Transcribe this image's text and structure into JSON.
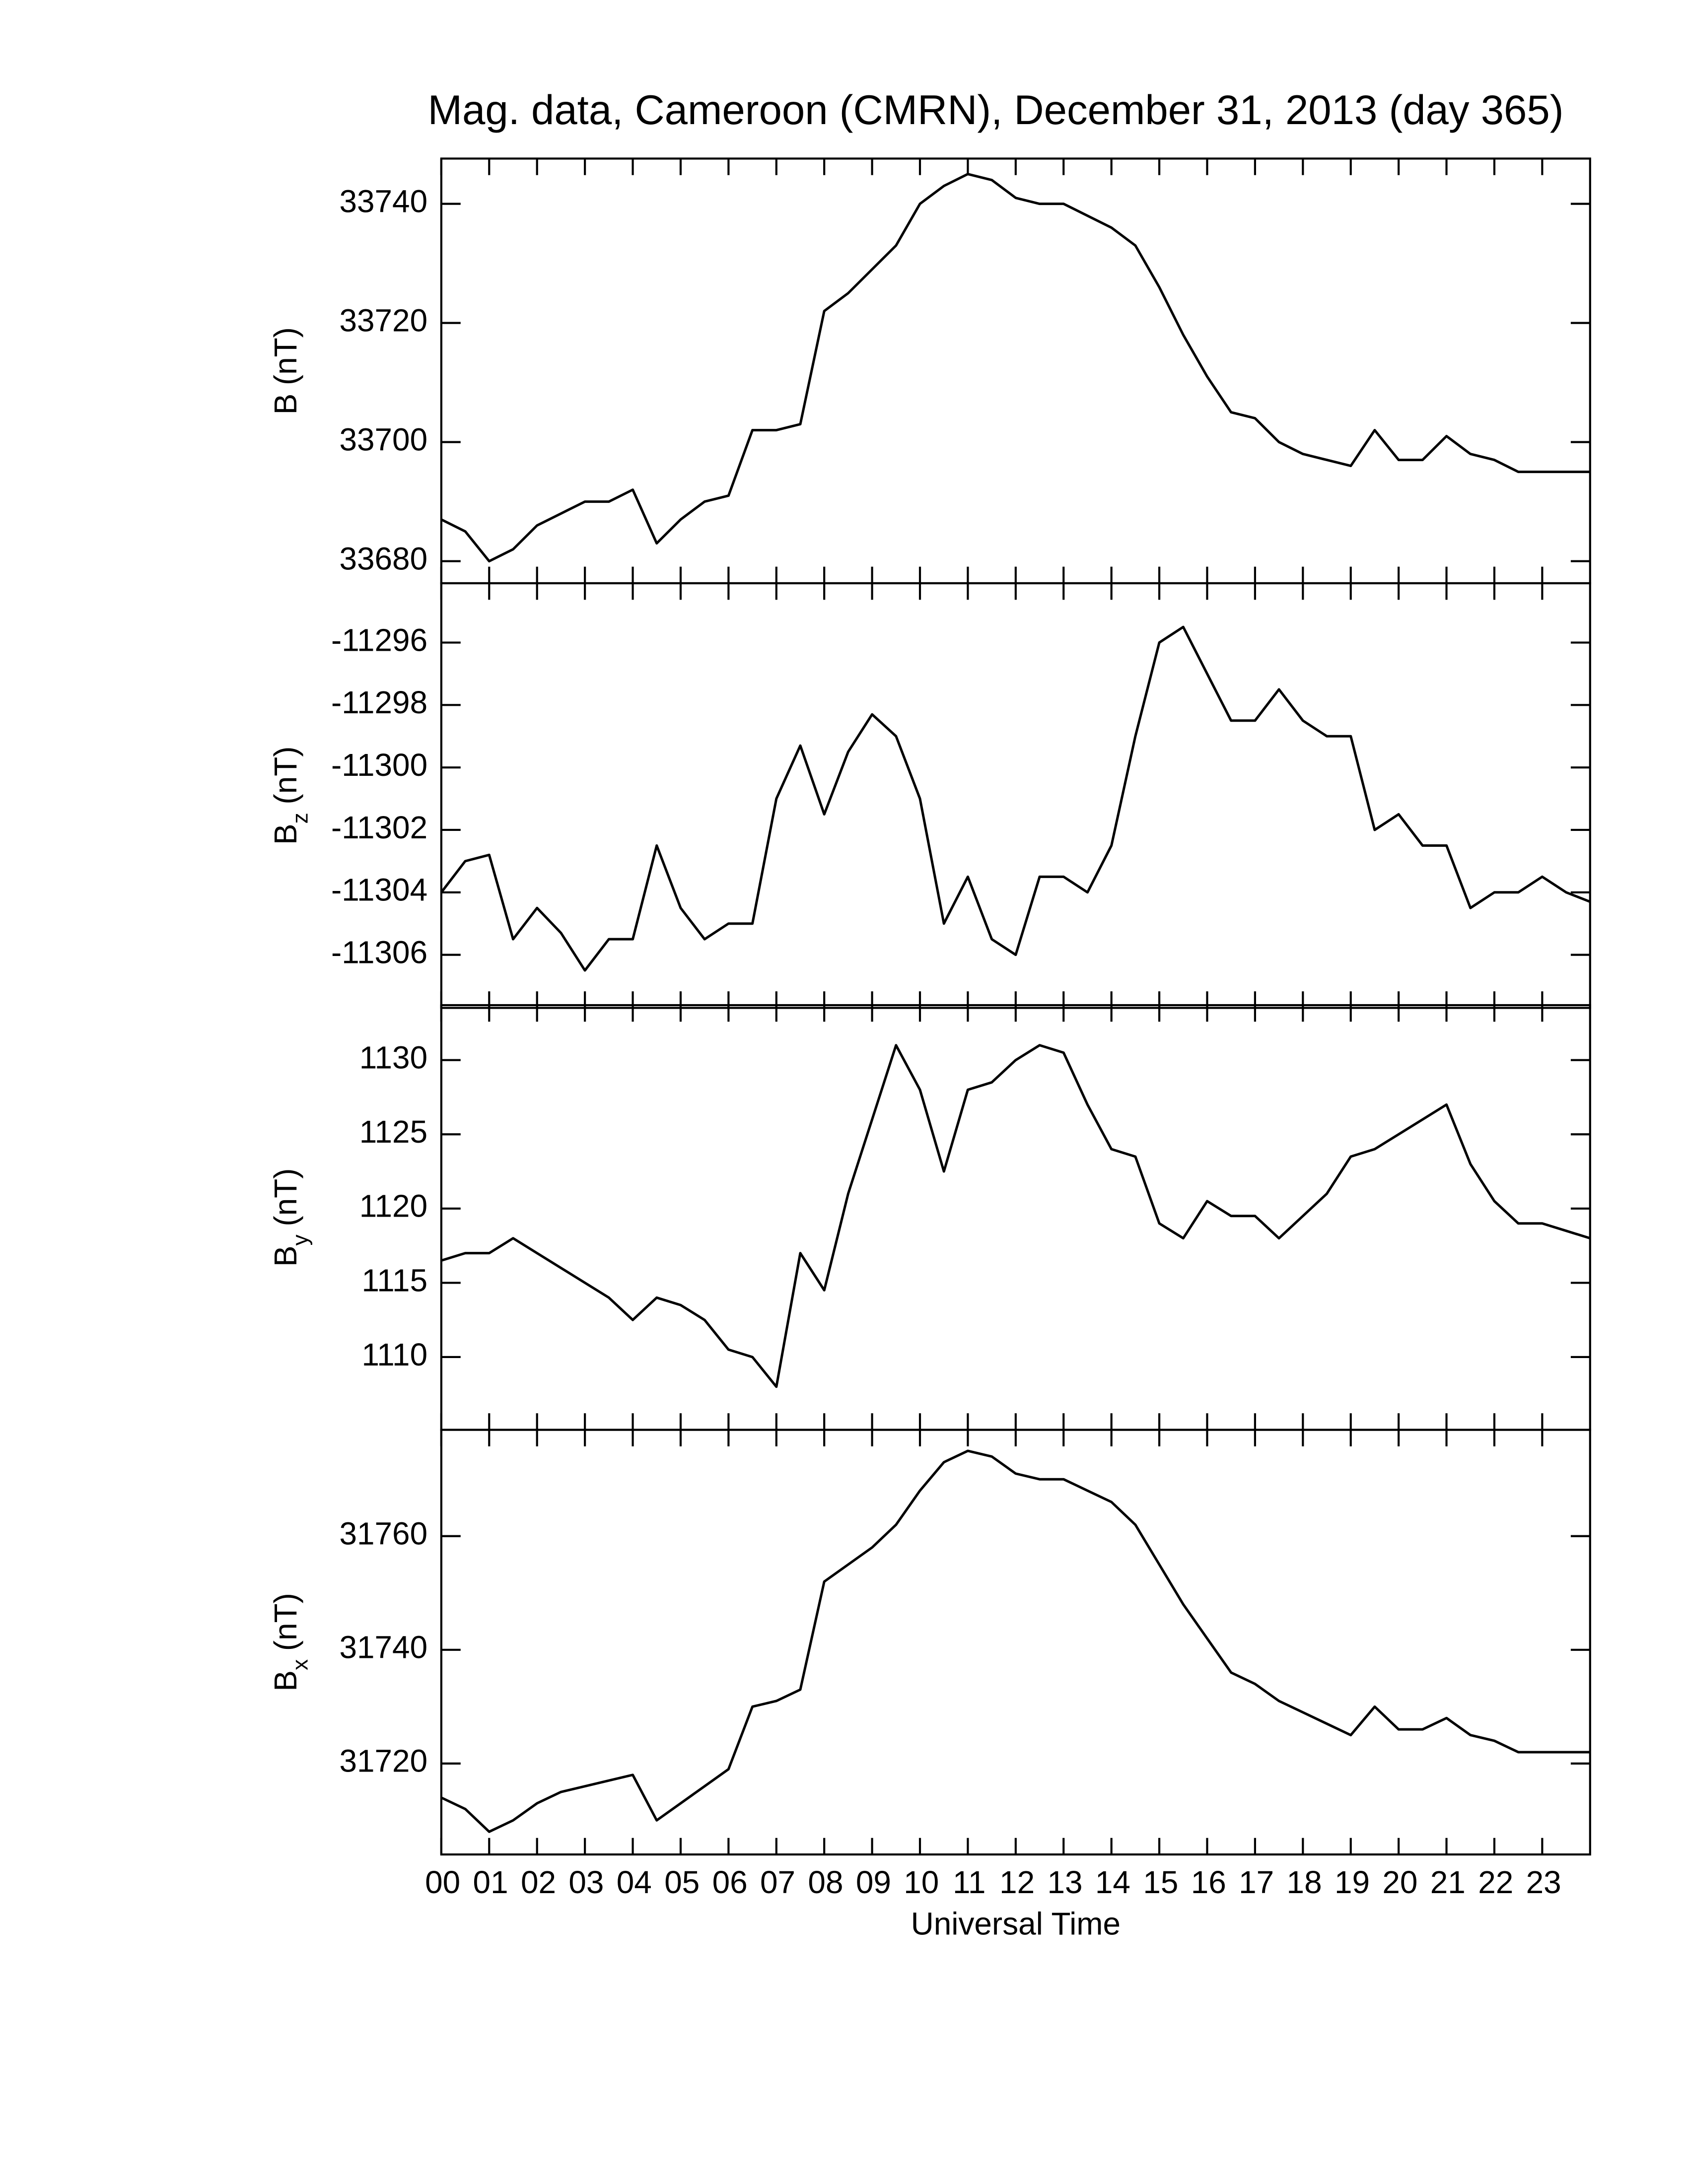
{
  "chart_data": [
    {
      "type": "line",
      "title": "Mag. data, Cameroon (CMRN), December 31, 2013 (day 365)",
      "ylabel": {
        "base": "B",
        "unit": "(nT)"
      },
      "color": "#000000",
      "x": [
        0,
        0.5,
        1,
        1.5,
        2,
        2.5,
        3,
        3.5,
        4,
        4.5,
        5,
        5.5,
        6,
        6.5,
        7,
        7.5,
        8,
        8.5,
        9,
        9.5,
        10,
        10.5,
        11,
        11.5,
        12,
        12.5,
        13,
        13.5,
        14,
        14.5,
        15,
        15.5,
        16,
        16.5,
        17,
        17.5,
        18,
        18.5,
        19,
        19.5,
        20,
        20.5,
        21,
        21.5,
        22,
        22.5,
        23,
        23.5,
        24
      ],
      "values": [
        33687,
        33685,
        33680,
        33682,
        33686,
        33688,
        33690,
        33690,
        33692,
        33683,
        33687,
        33690,
        33691,
        33702,
        33702,
        33703,
        33722,
        33725,
        33729,
        33733,
        33740,
        33743,
        33745,
        33744,
        33741,
        33740,
        33740,
        33738,
        33736,
        33733,
        33726,
        33718,
        33711,
        33705,
        33704,
        33700,
        33698,
        33697,
        33696,
        33702,
        33697,
        33697,
        33701,
        33698,
        33697,
        33695,
        33695,
        33695,
        33695
      ],
      "xlim": [
        0,
        24
      ],
      "ylim": [
        33676.3,
        33747.6
      ],
      "yticks": [
        33680,
        33700,
        33720,
        33740
      ]
    },
    {
      "type": "line",
      "ylabel": {
        "base": "B",
        "sub": "z",
        "unit": "(nT)"
      },
      "color": "#000000",
      "x": [
        0,
        0.5,
        1,
        1.5,
        2,
        2.5,
        3,
        3.5,
        4,
        4.5,
        5,
        5.5,
        6,
        6.5,
        7,
        7.5,
        8,
        8.5,
        9,
        9.5,
        10,
        10.5,
        11,
        11.5,
        12,
        12.5,
        13,
        13.5,
        14,
        14.5,
        15,
        15.5,
        16,
        16.5,
        17,
        17.5,
        18,
        18.5,
        19,
        19.5,
        20,
        20.5,
        21,
        21.5,
        22,
        22.5,
        23,
        23.5,
        24
      ],
      "values": [
        -11304,
        -11303,
        -11302.8,
        -11305.5,
        -11304.5,
        -11305.3,
        -11306.5,
        -11305.5,
        -11305.5,
        -11302.5,
        -11304.5,
        -11305.5,
        -11305,
        -11305,
        -11301,
        -11299.3,
        -11301.5,
        -11299.5,
        -11298.3,
        -11299,
        -11301,
        -11305,
        -11303.5,
        -11305.5,
        -11306,
        -11303.5,
        -11303.5,
        -11304,
        -11302.5,
        -11299,
        -11296,
        -11295.5,
        -11297,
        -11298.5,
        -11298.5,
        -11297.5,
        -11298.5,
        -11299,
        -11299,
        -11302,
        -11301.5,
        -11302.5,
        -11302.5,
        -11304.5,
        -11304,
        -11304,
        -11303.5,
        -11304,
        -11304.3
      ],
      "xlim": [
        0,
        24
      ],
      "ylim": [
        -11307.7,
        -11294.1
      ],
      "yticks": [
        -11306,
        -11304,
        -11302,
        -11300,
        -11298,
        -11296
      ]
    },
    {
      "type": "line",
      "ylabel": {
        "base": "B",
        "sub": "y",
        "unit": "(nT)"
      },
      "color": "#000000",
      "x": [
        0,
        0.5,
        1,
        1.5,
        2,
        2.5,
        3,
        3.5,
        4,
        4.5,
        5,
        5.5,
        6,
        6.5,
        7,
        7.5,
        8,
        8.5,
        9,
        9.5,
        10,
        10.5,
        11,
        11.5,
        12,
        12.5,
        13,
        13.5,
        14,
        14.5,
        15,
        15.5,
        16,
        16.5,
        17,
        17.5,
        18,
        18.5,
        19,
        19.5,
        20,
        20.5,
        21,
        21.5,
        22,
        22.5,
        23,
        23.5,
        24
      ],
      "values": [
        1116.5,
        1117,
        1117,
        1118,
        1117,
        1116,
        1115,
        1114,
        1112.5,
        1114,
        1113.5,
        1112.5,
        1110.5,
        1110,
        1108,
        1117,
        1114.5,
        1121,
        1126,
        1131,
        1128,
        1122.5,
        1128,
        1128.5,
        1130,
        1131,
        1130.5,
        1127,
        1124,
        1123.5,
        1119,
        1118,
        1120.5,
        1119.5,
        1119.5,
        1118,
        1119.5,
        1121,
        1123.5,
        1124,
        1125,
        1126,
        1127,
        1123,
        1120.5,
        1119,
        1119,
        1118.5,
        1118
      ],
      "xlim": [
        0,
        24
      ],
      "ylim": [
        1105.1,
        1133.7
      ],
      "yticks": [
        1110,
        1115,
        1120,
        1125,
        1130
      ]
    },
    {
      "type": "line",
      "ylabel": {
        "base": "B",
        "sub": "x",
        "unit": "(nT)"
      },
      "xlabel": "Universal Time",
      "color": "#000000",
      "x": [
        0,
        0.5,
        1,
        1.5,
        2,
        2.5,
        3,
        3.5,
        4,
        4.5,
        5,
        5.5,
        6,
        6.5,
        7,
        7.5,
        8,
        8.5,
        9,
        9.5,
        10,
        10.5,
        11,
        11.5,
        12,
        12.5,
        13,
        13.5,
        14,
        14.5,
        15,
        15.5,
        16,
        16.5,
        17,
        17.5,
        18,
        18.5,
        19,
        19.5,
        20,
        20.5,
        21,
        21.5,
        22,
        22.5,
        23,
        23.5,
        24
      ],
      "values": [
        31714,
        31712,
        31708,
        31710,
        31713,
        31715,
        31716,
        31717,
        31718,
        31710,
        31713,
        31716,
        31719,
        31730,
        31731,
        31733,
        31752,
        31755,
        31758,
        31762,
        31768,
        31773,
        31775,
        31774,
        31771,
        31770,
        31770,
        31768,
        31766,
        31762,
        31755,
        31748,
        31742,
        31736,
        31734,
        31731,
        31729,
        31727,
        31725,
        31730,
        31726,
        31726,
        31728,
        31725,
        31724,
        31722,
        31722,
        31722,
        31722
      ],
      "xlim": [
        0,
        24
      ],
      "ylim": [
        31704,
        31778.7
      ],
      "yticks": [
        31720,
        31740,
        31760
      ],
      "xticks": [
        {
          "value": 0,
          "label": "00"
        },
        {
          "value": 1,
          "label": "01"
        },
        {
          "value": 2,
          "label": "02"
        },
        {
          "value": 3,
          "label": "03"
        },
        {
          "value": 4,
          "label": "04"
        },
        {
          "value": 5,
          "label": "05"
        },
        {
          "value": 6,
          "label": "06"
        },
        {
          "value": 7,
          "label": "07"
        },
        {
          "value": 8,
          "label": "08"
        },
        {
          "value": 9,
          "label": "09"
        },
        {
          "value": 10,
          "label": "10"
        },
        {
          "value": 11,
          "label": "11"
        },
        {
          "value": 12,
          "label": "12"
        },
        {
          "value": 13,
          "label": "13"
        },
        {
          "value": 14,
          "label": "14"
        },
        {
          "value": 15,
          "label": "15"
        },
        {
          "value": 16,
          "label": "16"
        },
        {
          "value": 17,
          "label": "17"
        },
        {
          "value": 18,
          "label": "18"
        },
        {
          "value": 19,
          "label": "19"
        },
        {
          "value": 20,
          "label": "20"
        },
        {
          "value": 21,
          "label": "21"
        },
        {
          "value": 22,
          "label": "22"
        },
        {
          "value": 23,
          "label": "23"
        }
      ]
    }
  ]
}
